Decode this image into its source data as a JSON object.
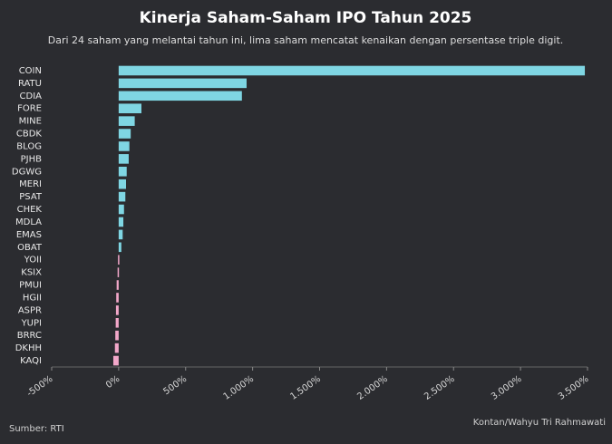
{
  "chart_data": {
    "type": "hbar",
    "title": "Kinerja Saham-Saham IPO Tahun 2025",
    "subtitle": "Dari 24 saham yang melantai tahun ini, lima saham mencatat kenaikan dengan persentase triple digit.",
    "categories": [
      "COIN",
      "RATU",
      "CDIA",
      "FORE",
      "MINE",
      "CBDK",
      "BLOG",
      "PJHB",
      "DGWG",
      "MERI",
      "PSAT",
      "CHEK",
      "MDLA",
      "EMAS",
      "OBAT",
      "YOII",
      "KSIX",
      "PMUI",
      "HGII",
      "ASPR",
      "YUPI",
      "BRRC",
      "DKHH",
      "KAQI"
    ],
    "values": [
      3480,
      955,
      920,
      170,
      120,
      90,
      80,
      75,
      60,
      55,
      50,
      40,
      35,
      30,
      20,
      -5,
      -8,
      -15,
      -18,
      -20,
      -22,
      -25,
      -28,
      -40
    ],
    "positive_color": "#7fd6e3",
    "negative_color": "#f2a7c9",
    "xlim": [
      -500,
      3500
    ],
    "xticks": [
      {
        "value": -500,
        "label": "-500%"
      },
      {
        "value": 0,
        "label": "0%"
      },
      {
        "value": 500,
        "label": "500%"
      },
      {
        "value": 1000,
        "label": "1.000%"
      },
      {
        "value": 1500,
        "label": "1.500%"
      },
      {
        "value": 2000,
        "label": "2.000%"
      },
      {
        "value": 2500,
        "label": "2.500%"
      },
      {
        "value": 3000,
        "label": "3.000%"
      },
      {
        "value": 3500,
        "label": "3.500%"
      }
    ],
    "source": "Sumber: RTI",
    "credit": "Kontan/Wahyu Tri Rahmawati"
  }
}
